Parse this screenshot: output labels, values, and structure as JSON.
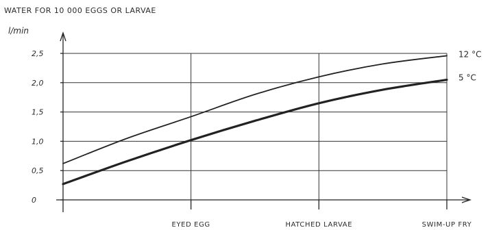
{
  "chart_data": {
    "type": "line",
    "title": "WATER FOR 10 000 EGGS OR LARVAE",
    "ylabel": "l/min",
    "xlabel": "",
    "categories": [
      "EYED EGG",
      "HATCHED LARVAE",
      "SWIM-UP FRY"
    ],
    "x_axis": "stage (start → SWIM-UP FRY)",
    "ylim": [
      0,
      2.5
    ],
    "yticks": [
      {
        "value": 0,
        "label": "0"
      },
      {
        "value": 0.5,
        "label": "0,5"
      },
      {
        "value": 1.0,
        "label": "1,0"
      },
      {
        "value": 1.5,
        "label": "1,5"
      },
      {
        "value": 2.0,
        "label": "2,0"
      },
      {
        "value": 2.5,
        "label": "2,5"
      }
    ],
    "grid": true,
    "series": [
      {
        "name": "12 °C",
        "stroke": "thin",
        "points": [
          [
            0,
            0.62
          ],
          [
            0.5,
            1.05
          ],
          [
            1,
            1.42
          ],
          [
            1.5,
            1.8
          ],
          [
            2,
            2.1
          ],
          [
            2.5,
            2.32
          ],
          [
            3,
            2.46
          ]
        ]
      },
      {
        "name": "5 °C",
        "stroke": "thick",
        "points": [
          [
            0,
            0.27
          ],
          [
            0.5,
            0.66
          ],
          [
            1,
            1.02
          ],
          [
            1.5,
            1.35
          ],
          [
            2,
            1.65
          ],
          [
            2.5,
            1.88
          ],
          [
            3,
            2.05
          ]
        ]
      }
    ],
    "line_color": "#222222",
    "grid_color": "#333333"
  }
}
